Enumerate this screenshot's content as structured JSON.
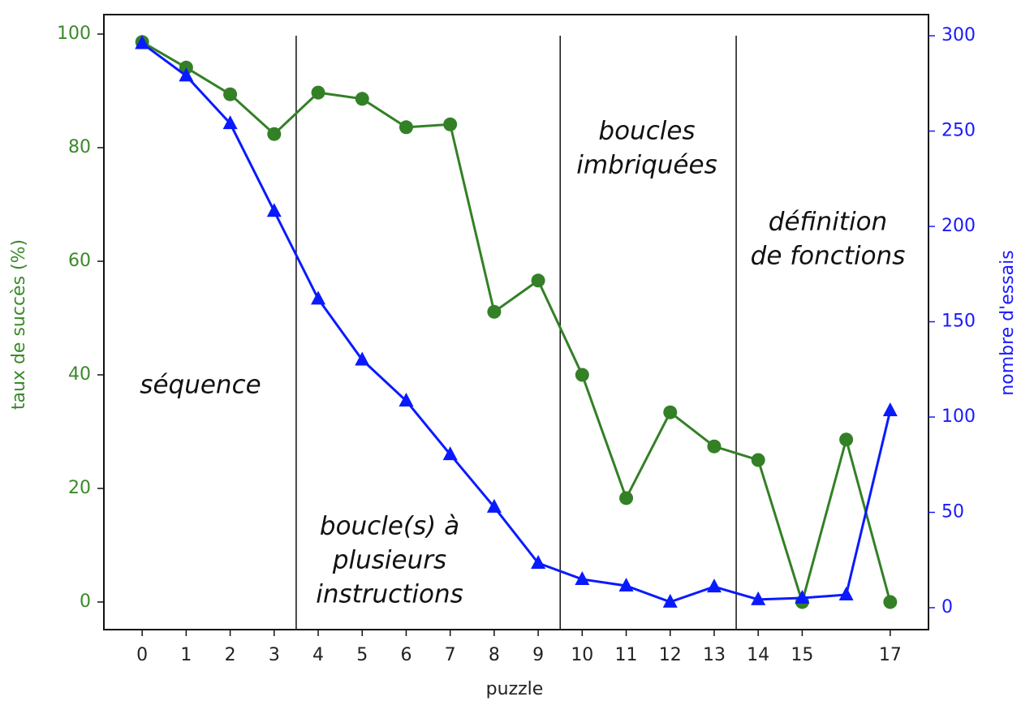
{
  "chart_data": {
    "type": "line",
    "xlabel": "puzzle",
    "ylabel": "taux de succès (%)",
    "y2label": "nombre d'essais",
    "x": [
      0,
      1,
      2,
      3,
      4,
      5,
      6,
      7,
      8,
      9,
      10,
      11,
      12,
      13,
      14,
      15,
      16,
      17
    ],
    "series": [
      {
        "color": "#338026",
        "marker": "circle",
        "axis": "y",
        "values": [
          98.6,
          94.1,
          89.4,
          82.4,
          89.7,
          88.6,
          83.6,
          84.1,
          51.1,
          56.6,
          40,
          18.3,
          33.4,
          27.4,
          25,
          0,
          28.6,
          0
        ]
      },
      {
        "color": "#0a1aff",
        "marker": "triangle",
        "axis": "y2",
        "values": [
          296,
          279,
          254,
          208,
          162,
          130,
          108.5,
          80.4,
          52.8,
          23.4,
          14.9,
          11.5,
          3,
          11,
          4.3,
          5.1,
          6.8,
          103.4
        ]
      }
    ],
    "xlim": [
      -0.87,
      17.87
    ],
    "xticks": [
      0,
      1,
      2,
      3,
      4,
      5,
      6,
      7,
      8,
      9,
      10,
      11,
      12,
      13,
      14,
      15,
      17
    ],
    "ylim": [
      -4.86,
      103.43
    ],
    "yticks": [
      0,
      20,
      40,
      60,
      80,
      100
    ],
    "y2lim": [
      -11.5,
      311.1
    ],
    "y2ticks": [
      0,
      50,
      100,
      150,
      200,
      250,
      300
    ],
    "vlines": [
      3.5,
      9.5,
      13.5
    ],
    "annotations": [
      {
        "lines": [
          "séquence"
        ]
      },
      {
        "lines": [
          "boucle(s) à",
          "plusieurs",
          "instructions"
        ]
      },
      {
        "lines": [
          "boucles",
          "imbriquées"
        ]
      },
      {
        "lines": [
          "définition",
          "de fonctions"
        ]
      }
    ]
  }
}
